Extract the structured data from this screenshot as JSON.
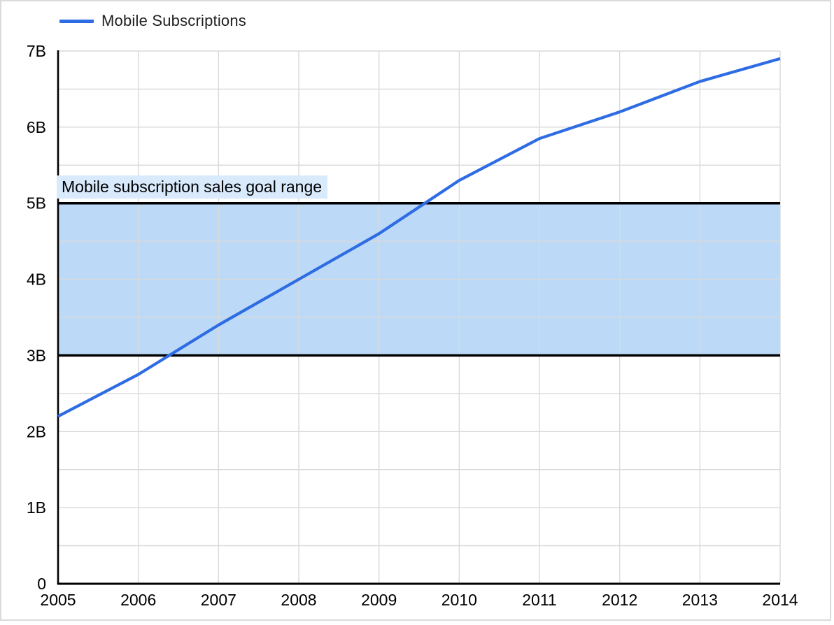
{
  "legend": {
    "label": "Mobile Subscriptions"
  },
  "band_label": "Mobile subscription sales goal range",
  "colors": {
    "line": "#2e6ce4",
    "band_fill": "#bcdaf8",
    "band_border": "#000000",
    "band_label_bg": "#d8eafc",
    "gridline": "#d9d9d9",
    "axis": "#000000",
    "tick_text": "#000000",
    "legend_text": "#1f1f1f"
  },
  "chart_data": {
    "type": "line",
    "title": "",
    "xlabel": "",
    "ylabel": "",
    "categories": [
      "2005",
      "2006",
      "2007",
      "2008",
      "2009",
      "2010",
      "2011",
      "2012",
      "2013",
      "2014"
    ],
    "series": [
      {
        "name": "Mobile Subscriptions",
        "unit": "billions",
        "values": [
          2.2,
          2.75,
          3.4,
          4.0,
          4.6,
          5.3,
          5.85,
          6.2,
          6.6,
          6.9
        ]
      }
    ],
    "ylim": [
      0,
      7
    ],
    "y_major_ticks": [
      {
        "value": 0,
        "label": "0"
      },
      {
        "value": 1,
        "label": "1B"
      },
      {
        "value": 2,
        "label": "2B"
      },
      {
        "value": 3,
        "label": "3B"
      },
      {
        "value": 4,
        "label": "4B"
      },
      {
        "value": 5,
        "label": "5B"
      },
      {
        "value": 6,
        "label": "6B"
      },
      {
        "value": 7,
        "label": "7B"
      }
    ],
    "y_minor_step": 0.5,
    "grid": true,
    "legend_position": "top-left",
    "band": {
      "from": 3,
      "to": 5,
      "label": "Mobile subscription sales goal range"
    }
  }
}
